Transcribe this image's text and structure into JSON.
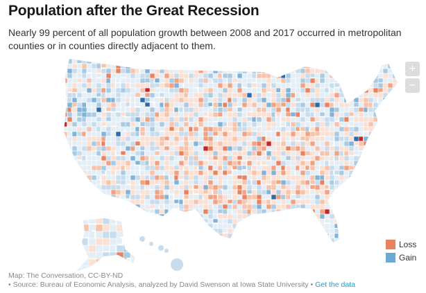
{
  "title": "Population after the Great Recession",
  "subtitle": "Nearly 99 percent of all population growth between 2008 and 2017 occurred in metropolitan counties or in counties directly adjacent to them.",
  "zoom": {
    "in": "+",
    "out": "−"
  },
  "legend": [
    {
      "label": "Loss",
      "color": "#e8825f"
    },
    {
      "label": "Gain",
      "color": "#6aaad4"
    }
  ],
  "footer": {
    "credit": "Map: The Conversation, CC-BY-ND",
    "source": "• Source: Bureau of Economic Analysis, analyzed by David Swenson at Iowa State University •",
    "link": "Get the data"
  },
  "colors": {
    "loss": [
      "#fbe0d3",
      "#f7c3aa",
      "#f0a283",
      "#e8825f",
      "#c0262c"
    ],
    "gain": [
      "#e3eef6",
      "#c7dcec",
      "#a8cbe3",
      "#7fb3d8",
      "#2b6aab"
    ],
    "nodata": "#d9d9d9"
  }
}
